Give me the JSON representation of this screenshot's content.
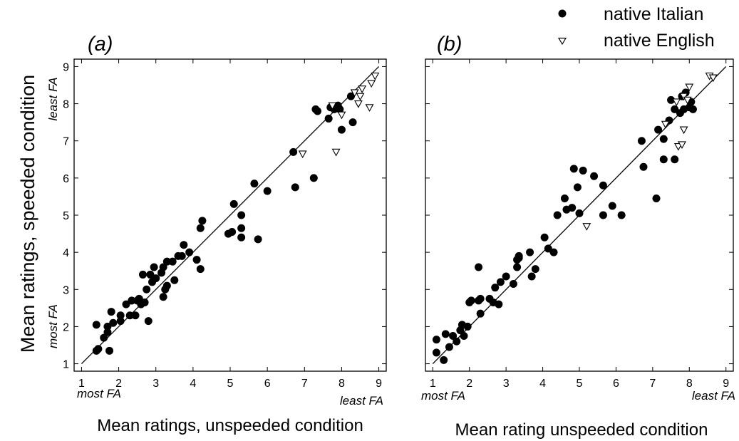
{
  "legend": {
    "entries": [
      {
        "label": "native Italian",
        "marker": "filled-circle"
      },
      {
        "label": "native English",
        "marker": "open-triangle-down"
      }
    ],
    "placement": "top-right"
  },
  "ylabel": "Mean ratings, speeded condition",
  "colors": {
    "ink": "#000000",
    "background": "#ffffff"
  },
  "chart_data": [
    {
      "type": "scatter",
      "title": "(a)",
      "xlabel": "Mean ratings, unspeeded condition",
      "ylabel": "Mean ratings, speeded condition",
      "x_low_label": "most FA",
      "x_high_label": "least FA",
      "y_low_label": "most FA",
      "y_high_label": "least FA",
      "xlim": [
        0.8,
        9.2
      ],
      "ylim": [
        0.8,
        9.2
      ],
      "xticks": [
        "1",
        "2",
        "3",
        "4",
        "5",
        "6",
        "7",
        "8",
        "9"
      ],
      "yticks": [
        "1",
        "2",
        "3",
        "4",
        "5",
        "6",
        "7",
        "8",
        "9"
      ],
      "grid": false,
      "reference_line": [
        [
          1,
          1
        ],
        [
          9,
          9
        ]
      ],
      "series": [
        {
          "name": "native Italian",
          "marker": "filled-circle",
          "points": [
            [
              1.4,
              2.05
            ],
            [
              1.4,
              1.35
            ],
            [
              1.45,
              1.4
            ],
            [
              1.6,
              1.7
            ],
            [
              1.7,
              2.0
            ],
            [
              1.7,
              1.85
            ],
            [
              1.75,
              1.35
            ],
            [
              1.8,
              2.4
            ],
            [
              1.85,
              2.1
            ],
            [
              2.05,
              2.3
            ],
            [
              2.05,
              2.15
            ],
            [
              2.2,
              2.6
            ],
            [
              2.3,
              2.3
            ],
            [
              2.35,
              2.7
            ],
            [
              2.45,
              2.3
            ],
            [
              2.5,
              2.7
            ],
            [
              2.55,
              2.75
            ],
            [
              2.6,
              2.6
            ],
            [
              2.65,
              3.4
            ],
            [
              2.7,
              2.65
            ],
            [
              2.75,
              3.0
            ],
            [
              2.8,
              2.15
            ],
            [
              2.85,
              3.4
            ],
            [
              2.9,
              3.2
            ],
            [
              2.95,
              3.6
            ],
            [
              3.0,
              3.3
            ],
            [
              3.15,
              3.45
            ],
            [
              3.2,
              3.6
            ],
            [
              3.2,
              2.8
            ],
            [
              3.25,
              3.0
            ],
            [
              3.3,
              3.1
            ],
            [
              3.3,
              3.75
            ],
            [
              3.45,
              3.75
            ],
            [
              3.5,
              3.25
            ],
            [
              3.6,
              3.9
            ],
            [
              3.7,
              3.9
            ],
            [
              3.75,
              4.2
            ],
            [
              3.9,
              4.0
            ],
            [
              4.1,
              3.8
            ],
            [
              4.2,
              3.55
            ],
            [
              4.2,
              4.65
            ],
            [
              4.25,
              4.85
            ],
            [
              4.95,
              4.5
            ],
            [
              5.05,
              4.55
            ],
            [
              5.1,
              5.3
            ],
            [
              5.3,
              4.65
            ],
            [
              5.3,
              4.4
            ],
            [
              5.3,
              5.0
            ],
            [
              5.65,
              5.85
            ],
            [
              5.75,
              4.35
            ],
            [
              6.0,
              5.65
            ],
            [
              6.7,
              6.7
            ],
            [
              6.75,
              5.75
            ],
            [
              7.25,
              6.0
            ],
            [
              7.3,
              7.85
            ],
            [
              7.35,
              7.8
            ],
            [
              7.65,
              7.6
            ],
            [
              7.7,
              7.9
            ],
            [
              7.8,
              7.85
            ],
            [
              7.9,
              7.95
            ],
            [
              7.95,
              7.85
            ],
            [
              8.0,
              7.3
            ],
            [
              8.25,
              8.2
            ],
            [
              8.3,
              7.5
            ]
          ]
        },
        {
          "name": "native English",
          "marker": "open-triangle-down",
          "points": [
            [
              6.95,
              6.65
            ],
            [
              7.75,
              7.95
            ],
            [
              7.85,
              6.7
            ],
            [
              8.0,
              7.7
            ],
            [
              8.35,
              8.3
            ],
            [
              8.45,
              8.0
            ],
            [
              8.5,
              8.2
            ],
            [
              8.55,
              8.4
            ],
            [
              8.75,
              7.9
            ],
            [
              8.8,
              8.55
            ],
            [
              8.9,
              8.75
            ]
          ]
        }
      ]
    },
    {
      "type": "scatter",
      "title": "(b)",
      "xlabel": "Mean rating unspeeded condition",
      "x_low_label": "most FA",
      "x_high_label": "least FA",
      "xlim": [
        0.8,
        9.2
      ],
      "ylim": [
        0.8,
        9.2
      ],
      "xticks": [
        "1",
        "2",
        "3",
        "4",
        "5",
        "6",
        "7",
        "8",
        "9"
      ],
      "yticks": [],
      "grid": false,
      "reference_line": [
        [
          1,
          1
        ],
        [
          9,
          9
        ]
      ],
      "series": [
        {
          "name": "native Italian",
          "marker": "filled-circle",
          "points": [
            [
              1.1,
              1.65
            ],
            [
              1.1,
              1.3
            ],
            [
              1.3,
              1.1
            ],
            [
              1.35,
              1.8
            ],
            [
              1.45,
              1.45
            ],
            [
              1.55,
              1.75
            ],
            [
              1.65,
              1.6
            ],
            [
              1.75,
              1.9
            ],
            [
              1.8,
              2.05
            ],
            [
              1.85,
              1.75
            ],
            [
              1.95,
              2.0
            ],
            [
              2.0,
              2.65
            ],
            [
              2.05,
              2.7
            ],
            [
              2.25,
              2.7
            ],
            [
              2.3,
              2.75
            ],
            [
              2.3,
              2.35
            ],
            [
              2.25,
              3.6
            ],
            [
              2.55,
              2.75
            ],
            [
              2.65,
              2.65
            ],
            [
              2.7,
              3.05
            ],
            [
              2.8,
              2.6
            ],
            [
              2.85,
              3.2
            ],
            [
              3.0,
              3.35
            ],
            [
              3.2,
              3.15
            ],
            [
              3.3,
              3.6
            ],
            [
              3.3,
              3.8
            ],
            [
              3.35,
              3.85
            ],
            [
              3.35,
              3.9
            ],
            [
              3.65,
              4.0
            ],
            [
              3.7,
              3.35
            ],
            [
              3.8,
              3.55
            ],
            [
              4.05,
              4.4
            ],
            [
              4.15,
              4.1
            ],
            [
              4.3,
              4.0
            ],
            [
              4.4,
              5.0
            ],
            [
              4.6,
              5.45
            ],
            [
              4.65,
              5.15
            ],
            [
              4.8,
              5.2
            ],
            [
              4.85,
              6.25
            ],
            [
              4.95,
              5.75
            ],
            [
              5.0,
              5.05
            ],
            [
              5.1,
              6.2
            ],
            [
              5.4,
              6.05
            ],
            [
              5.65,
              5.0
            ],
            [
              5.65,
              5.8
            ],
            [
              5.9,
              5.25
            ],
            [
              6.15,
              5.0
            ],
            [
              6.7,
              7.0
            ],
            [
              6.75,
              6.3
            ],
            [
              7.1,
              5.45
            ],
            [
              7.15,
              7.3
            ],
            [
              7.3,
              7.05
            ],
            [
              7.3,
              6.5
            ],
            [
              7.45,
              7.55
            ],
            [
              7.5,
              8.1
            ],
            [
              7.6,
              7.85
            ],
            [
              7.6,
              6.5
            ],
            [
              7.75,
              7.75
            ],
            [
              7.8,
              8.2
            ],
            [
              7.85,
              7.85
            ],
            [
              7.9,
              8.3
            ],
            [
              8.0,
              7.9
            ],
            [
              8.05,
              8.05
            ],
            [
              8.1,
              7.85
            ]
          ]
        },
        {
          "name": "native English",
          "marker": "open-triangle-down",
          "points": [
            [
              5.2,
              4.7
            ],
            [
              7.35,
              7.45
            ],
            [
              7.65,
              8.05
            ],
            [
              7.7,
              6.85
            ],
            [
              7.8,
              6.9
            ],
            [
              7.85,
              7.3
            ],
            [
              7.85,
              8.2
            ],
            [
              7.95,
              8.1
            ],
            [
              8.0,
              8.45
            ],
            [
              8.55,
              8.75
            ],
            [
              8.65,
              8.7
            ]
          ]
        }
      ]
    }
  ]
}
